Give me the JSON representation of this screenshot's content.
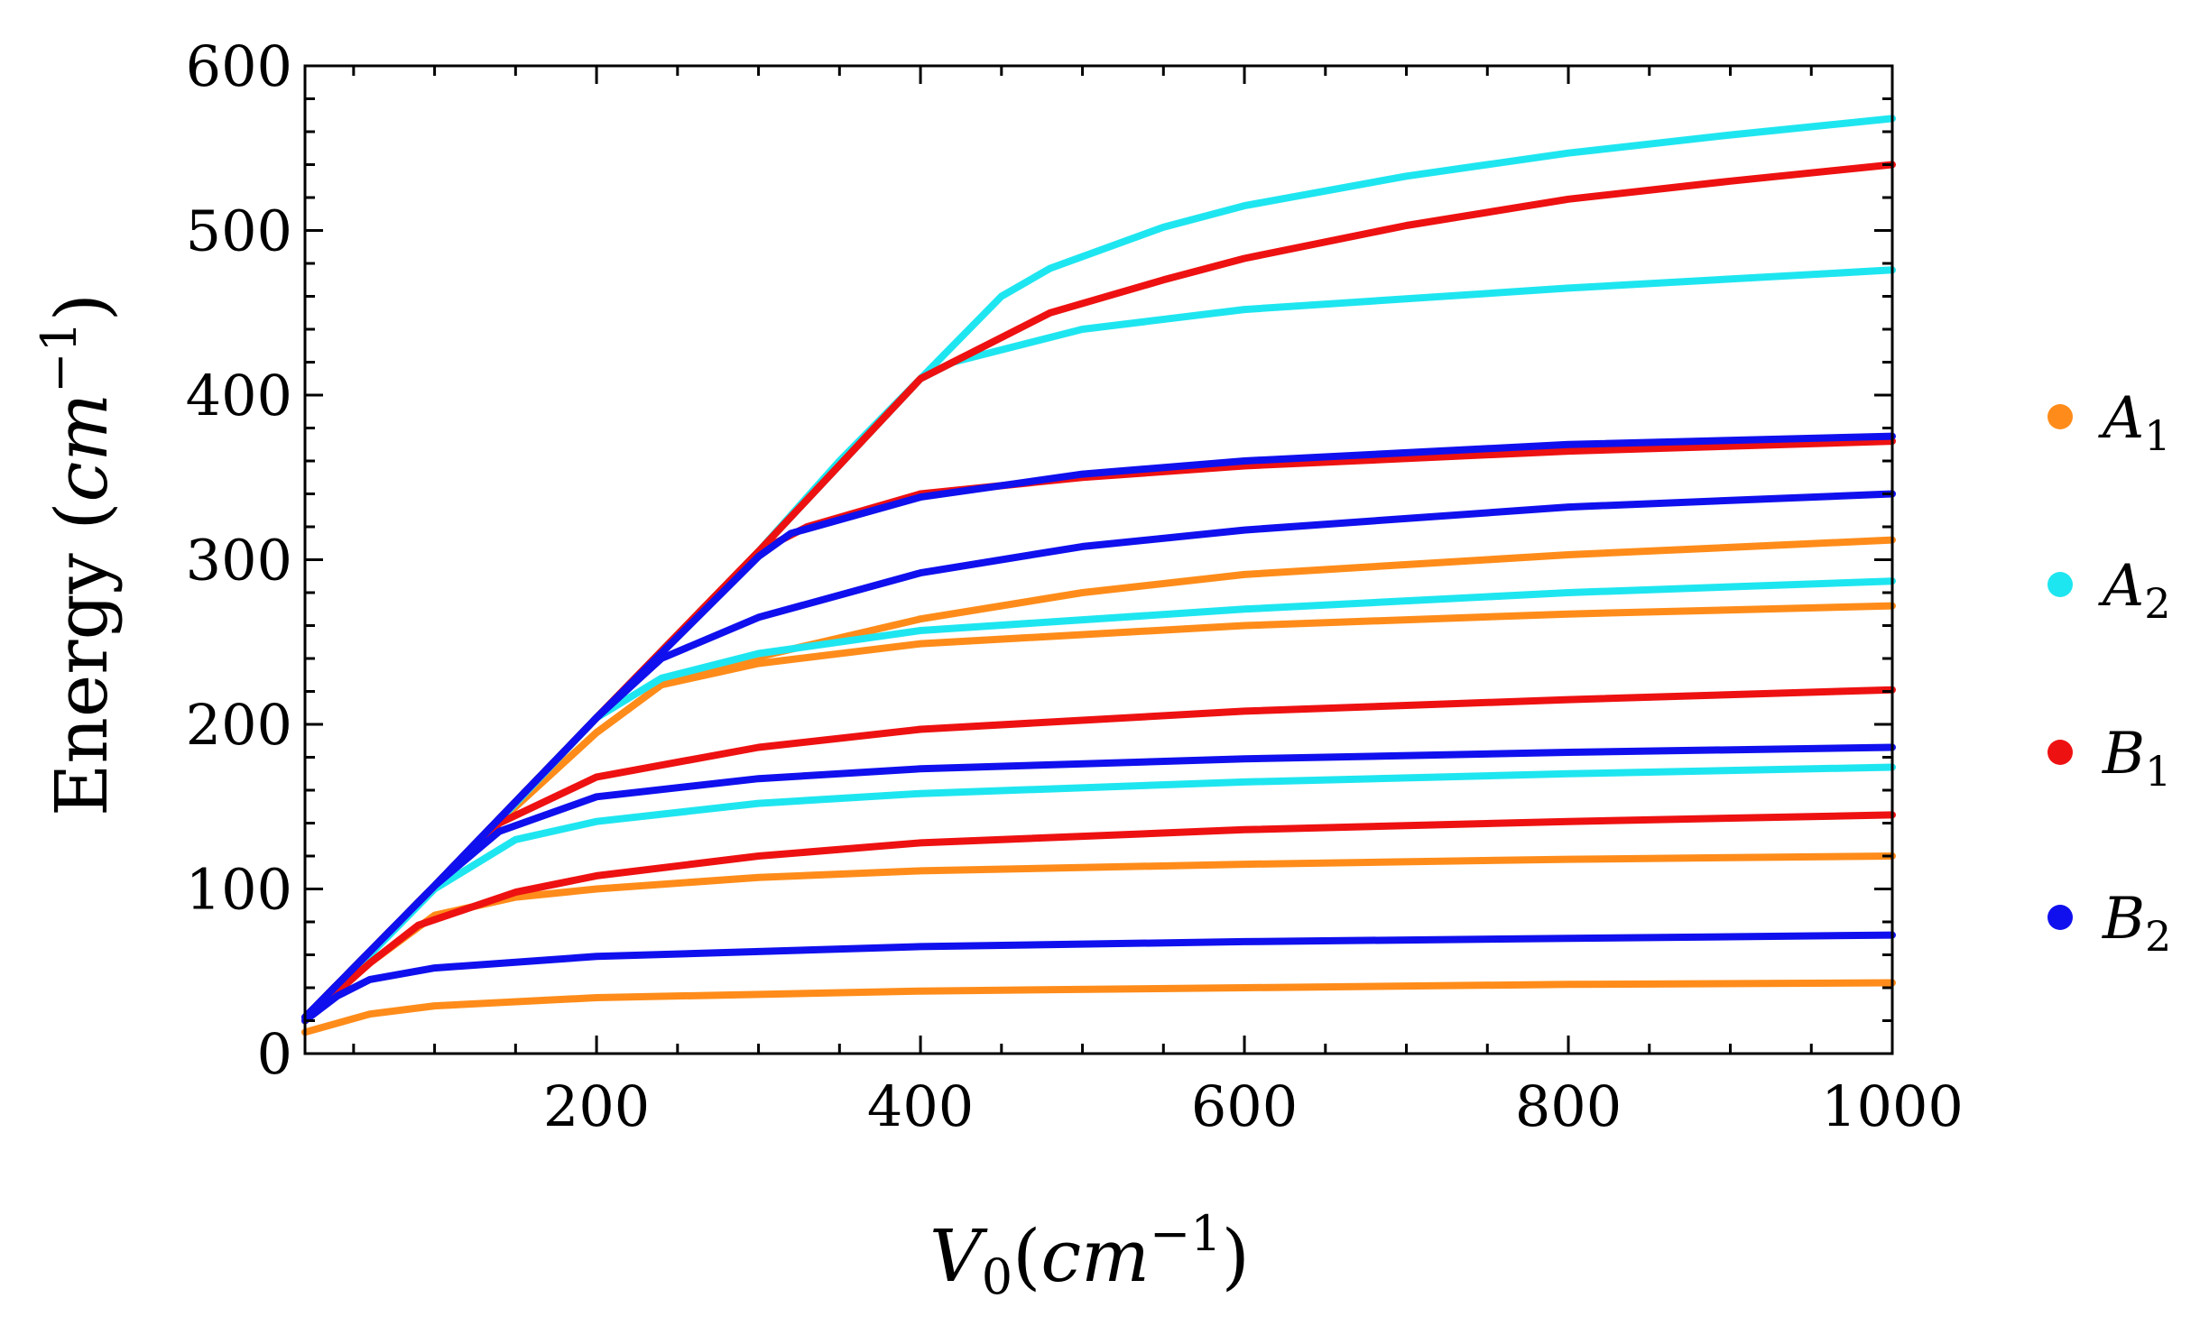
{
  "chart_data": {
    "type": "line",
    "xlabel": "V0(cm^-1)",
    "xlabel_parts": {
      "main": "V",
      "sub": "0",
      "open": "(",
      "unit": "cm",
      "sup": "−1",
      "close": ")"
    },
    "ylabel": "Energy (cm^-1)",
    "ylabel_parts": {
      "main": "Energy",
      "open": " (",
      "unit": "cm",
      "sup": "−1",
      "close": ")"
    },
    "xlim": [
      20,
      1000
    ],
    "ylim": [
      0,
      600
    ],
    "x_ticks": [
      200,
      400,
      600,
      800,
      1000
    ],
    "y_ticks": [
      0,
      100,
      200,
      300,
      400,
      500,
      600
    ],
    "x_ticks_labels": [
      "200",
      "400",
      "600",
      "800",
      "1000"
    ],
    "y_ticks_labels": [
      "0",
      "100",
      "200",
      "300",
      "400",
      "500",
      "600"
    ],
    "legend_position": "right",
    "legend": [
      {
        "name": "A",
        "sub": "1",
        "color": "#ff8c1a"
      },
      {
        "name": "A",
        "sub": "2",
        "color": "#1ee6f0"
      },
      {
        "name": "B",
        "sub": "1",
        "color": "#ee1111"
      },
      {
        "name": "B",
        "sub": "2",
        "color": "#1010ee"
      }
    ],
    "series": [
      {
        "name": "A1-a",
        "group": "A1",
        "color": "#ff8c1a",
        "points": [
          [
            20,
            13
          ],
          [
            60,
            24
          ],
          [
            100,
            29
          ],
          [
            200,
            34
          ],
          [
            400,
            38
          ],
          [
            600,
            40
          ],
          [
            800,
            42
          ],
          [
            1000,
            43
          ]
        ]
      },
      {
        "name": "A1-b",
        "group": "A1",
        "color": "#ff8c1a",
        "points": [
          [
            20,
            20
          ],
          [
            60,
            55
          ],
          [
            100,
            84
          ],
          [
            150,
            95
          ],
          [
            200,
            100
          ],
          [
            300,
            107
          ],
          [
            400,
            111
          ],
          [
            600,
            115
          ],
          [
            800,
            118
          ],
          [
            1000,
            120
          ]
        ]
      },
      {
        "name": "A1-c",
        "group": "A1",
        "color": "#ff8c1a",
        "points": [
          [
            20,
            22
          ],
          [
            100,
            102
          ],
          [
            150,
            150
          ],
          [
            200,
            195
          ],
          [
            240,
            224
          ],
          [
            300,
            237
          ],
          [
            400,
            249
          ],
          [
            600,
            260
          ],
          [
            800,
            267
          ],
          [
            1000,
            272
          ]
        ]
      },
      {
        "name": "A1-d",
        "group": "A1",
        "color": "#ff8c1a",
        "points": [
          [
            20,
            22
          ],
          [
            100,
            102
          ],
          [
            150,
            150
          ],
          [
            200,
            195
          ],
          [
            240,
            224
          ],
          [
            300,
            241
          ],
          [
            400,
            264
          ],
          [
            500,
            280
          ],
          [
            600,
            291
          ],
          [
            800,
            303
          ],
          [
            1000,
            312
          ]
        ]
      },
      {
        "name": "A2-a",
        "group": "A2",
        "color": "#1ee6f0",
        "points": [
          [
            20,
            20
          ],
          [
            60,
            60
          ],
          [
            100,
            100
          ],
          [
            150,
            130
          ],
          [
            200,
            141
          ],
          [
            300,
            152
          ],
          [
            400,
            158
          ],
          [
            600,
            165
          ],
          [
            800,
            170
          ],
          [
            1000,
            174
          ]
        ]
      },
      {
        "name": "A2-b",
        "group": "A2",
        "color": "#1ee6f0",
        "points": [
          [
            20,
            22
          ],
          [
            100,
            102
          ],
          [
            150,
            152
          ],
          [
            200,
            204
          ],
          [
            240,
            228
          ],
          [
            300,
            243
          ],
          [
            400,
            257
          ],
          [
            600,
            270
          ],
          [
            800,
            280
          ],
          [
            1000,
            287
          ]
        ]
      },
      {
        "name": "A2-c",
        "group": "A2",
        "color": "#1ee6f0",
        "points": [
          [
            20,
            22
          ],
          [
            100,
            102
          ],
          [
            200,
            204
          ],
          [
            300,
            305
          ],
          [
            350,
            360
          ],
          [
            400,
            410
          ],
          [
            420,
            420
          ],
          [
            500,
            440
          ],
          [
            600,
            452
          ],
          [
            800,
            465
          ],
          [
            1000,
            476
          ]
        ]
      },
      {
        "name": "A2-d",
        "group": "A2",
        "color": "#1ee6f0",
        "points": [
          [
            20,
            22
          ],
          [
            100,
            102
          ],
          [
            200,
            204
          ],
          [
            300,
            305
          ],
          [
            400,
            410
          ],
          [
            450,
            460
          ],
          [
            480,
            477
          ],
          [
            550,
            502
          ],
          [
            600,
            515
          ],
          [
            700,
            533
          ],
          [
            800,
            547
          ],
          [
            900,
            558
          ],
          [
            1000,
            568
          ]
        ]
      },
      {
        "name": "B1-a",
        "group": "B1",
        "color": "#ee1111",
        "points": [
          [
            20,
            20
          ],
          [
            60,
            55
          ],
          [
            90,
            78
          ],
          [
            150,
            98
          ],
          [
            200,
            108
          ],
          [
            300,
            120
          ],
          [
            400,
            128
          ],
          [
            600,
            136
          ],
          [
            800,
            141
          ],
          [
            1000,
            145
          ]
        ]
      },
      {
        "name": "B1-b",
        "group": "B1",
        "color": "#ee1111",
        "points": [
          [
            20,
            22
          ],
          [
            100,
            102
          ],
          [
            140,
            140
          ],
          [
            200,
            168
          ],
          [
            300,
            186
          ],
          [
            400,
            197
          ],
          [
            600,
            208
          ],
          [
            800,
            215
          ],
          [
            1000,
            221
          ]
        ]
      },
      {
        "name": "B1-c",
        "group": "B1",
        "color": "#ee1111",
        "points": [
          [
            20,
            22
          ],
          [
            100,
            102
          ],
          [
            200,
            204
          ],
          [
            300,
            305
          ],
          [
            330,
            320
          ],
          [
            400,
            340
          ],
          [
            500,
            350
          ],
          [
            600,
            357
          ],
          [
            800,
            366
          ],
          [
            1000,
            372
          ]
        ]
      },
      {
        "name": "B1-d",
        "group": "B1",
        "color": "#ee1111",
        "points": [
          [
            20,
            22
          ],
          [
            100,
            102
          ],
          [
            200,
            204
          ],
          [
            300,
            305
          ],
          [
            400,
            410
          ],
          [
            420,
            420
          ],
          [
            480,
            450
          ],
          [
            550,
            470
          ],
          [
            600,
            483
          ],
          [
            700,
            503
          ],
          [
            800,
            519
          ],
          [
            900,
            530
          ],
          [
            1000,
            540
          ]
        ]
      },
      {
        "name": "B2-a",
        "group": "B2",
        "color": "#1010ee",
        "points": [
          [
            20,
            20
          ],
          [
            40,
            35
          ],
          [
            60,
            45
          ],
          [
            100,
            52
          ],
          [
            200,
            59
          ],
          [
            400,
            65
          ],
          [
            600,
            68
          ],
          [
            800,
            70
          ],
          [
            1000,
            72
          ]
        ]
      },
      {
        "name": "B2-b",
        "group": "B2",
        "color": "#1010ee",
        "points": [
          [
            20,
            22
          ],
          [
            100,
            102
          ],
          [
            140,
            135
          ],
          [
            200,
            156
          ],
          [
            300,
            167
          ],
          [
            400,
            173
          ],
          [
            600,
            179
          ],
          [
            800,
            183
          ],
          [
            1000,
            186
          ]
        ]
      },
      {
        "name": "B2-c",
        "group": "B2",
        "color": "#1010ee",
        "points": [
          [
            20,
            22
          ],
          [
            100,
            102
          ],
          [
            200,
            204
          ],
          [
            240,
            240
          ],
          [
            300,
            265
          ],
          [
            400,
            292
          ],
          [
            500,
            308
          ],
          [
            600,
            318
          ],
          [
            800,
            332
          ],
          [
            1000,
            340
          ]
        ]
      },
      {
        "name": "B2-d",
        "group": "B2",
        "color": "#1010ee",
        "points": [
          [
            20,
            22
          ],
          [
            100,
            102
          ],
          [
            200,
            204
          ],
          [
            300,
            302
          ],
          [
            320,
            316
          ],
          [
            400,
            338
          ],
          [
            500,
            352
          ],
          [
            600,
            360
          ],
          [
            800,
            370
          ],
          [
            1000,
            375
          ]
        ]
      }
    ]
  }
}
